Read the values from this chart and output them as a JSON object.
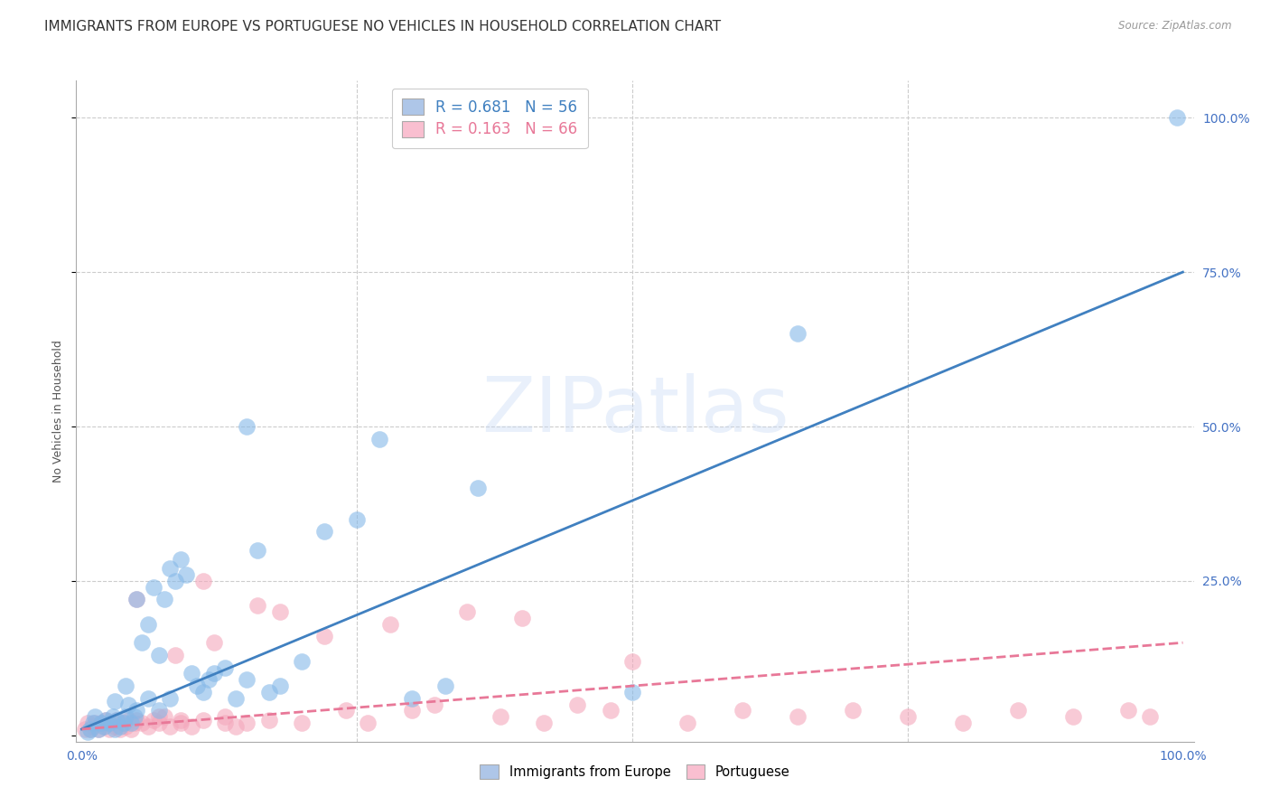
{
  "title": "IMMIGRANTS FROM EUROPE VS PORTUGUESE NO VEHICLES IN HOUSEHOLD CORRELATION CHART",
  "source": "Source: ZipAtlas.com",
  "ylabel": "No Vehicles in Household",
  "legend_line1": "R = 0.681   N = 56",
  "legend_line2": "R = 0.163   N = 66",
  "legend_color1": "#aec6e8",
  "legend_color2": "#f9bfd0",
  "watermark": "ZIPatlas",
  "blue_color": "#85b8e8",
  "pink_color": "#f4a8bc",
  "blue_line_color": "#4080c0",
  "pink_line_color": "#e87898",
  "background_color": "#ffffff",
  "grid_color": "#cccccc",
  "blue_points_x": [
    0.005,
    0.008,
    0.01,
    0.012,
    0.015,
    0.018,
    0.02,
    0.022,
    0.025,
    0.028,
    0.03,
    0.032,
    0.035,
    0.038,
    0.04,
    0.042,
    0.045,
    0.048,
    0.05,
    0.055,
    0.06,
    0.065,
    0.07,
    0.075,
    0.08,
    0.085,
    0.09,
    0.095,
    0.1,
    0.105,
    0.11,
    0.115,
    0.12,
    0.13,
    0.14,
    0.15,
    0.16,
    0.17,
    0.18,
    0.2,
    0.22,
    0.25,
    0.27,
    0.3,
    0.33,
    0.36,
    0.65,
    0.995,
    0.03,
    0.04,
    0.05,
    0.06,
    0.07,
    0.08,
    0.5,
    0.15
  ],
  "blue_points_y": [
    0.005,
    0.01,
    0.02,
    0.03,
    0.01,
    0.02,
    0.015,
    0.025,
    0.02,
    0.03,
    0.01,
    0.025,
    0.015,
    0.02,
    0.03,
    0.05,
    0.02,
    0.03,
    0.22,
    0.15,
    0.18,
    0.24,
    0.13,
    0.22,
    0.27,
    0.25,
    0.285,
    0.26,
    0.1,
    0.08,
    0.07,
    0.09,
    0.1,
    0.11,
    0.06,
    0.09,
    0.3,
    0.07,
    0.08,
    0.12,
    0.33,
    0.35,
    0.48,
    0.06,
    0.08,
    0.4,
    0.65,
    1.0,
    0.055,
    0.08,
    0.04,
    0.06,
    0.04,
    0.06,
    0.07,
    0.5
  ],
  "pink_points_x": [
    0.003,
    0.005,
    0.008,
    0.01,
    0.012,
    0.015,
    0.018,
    0.02,
    0.022,
    0.025,
    0.028,
    0.03,
    0.032,
    0.035,
    0.038,
    0.04,
    0.042,
    0.045,
    0.048,
    0.05,
    0.055,
    0.06,
    0.065,
    0.07,
    0.075,
    0.08,
    0.085,
    0.09,
    0.1,
    0.11,
    0.12,
    0.13,
    0.14,
    0.15,
    0.16,
    0.18,
    0.2,
    0.22,
    0.24,
    0.26,
    0.28,
    0.3,
    0.32,
    0.35,
    0.38,
    0.4,
    0.42,
    0.45,
    0.48,
    0.5,
    0.55,
    0.6,
    0.65,
    0.7,
    0.75,
    0.8,
    0.85,
    0.9,
    0.95,
    0.97,
    0.05,
    0.07,
    0.09,
    0.11,
    0.13,
    0.17
  ],
  "pink_points_y": [
    0.01,
    0.02,
    0.01,
    0.015,
    0.02,
    0.01,
    0.02,
    0.015,
    0.025,
    0.01,
    0.02,
    0.015,
    0.025,
    0.01,
    0.02,
    0.015,
    0.025,
    0.01,
    0.02,
    0.22,
    0.02,
    0.015,
    0.025,
    0.02,
    0.03,
    0.015,
    0.13,
    0.02,
    0.015,
    0.25,
    0.15,
    0.02,
    0.015,
    0.02,
    0.21,
    0.2,
    0.02,
    0.16,
    0.04,
    0.02,
    0.18,
    0.04,
    0.05,
    0.2,
    0.03,
    0.19,
    0.02,
    0.05,
    0.04,
    0.12,
    0.02,
    0.04,
    0.03,
    0.04,
    0.03,
    0.02,
    0.04,
    0.03,
    0.04,
    0.03,
    0.025,
    0.03,
    0.025,
    0.025,
    0.03,
    0.025
  ],
  "blue_trend_x": [
    0.0,
    1.0
  ],
  "blue_trend_y": [
    0.01,
    0.75
  ],
  "pink_trend_x": [
    0.0,
    1.0
  ],
  "pink_trend_y": [
    0.01,
    0.15
  ],
  "xlim": [
    -0.005,
    1.01
  ],
  "ylim": [
    -0.01,
    1.06
  ],
  "title_fontsize": 11,
  "axis_label_fontsize": 9,
  "tick_fontsize": 10,
  "legend_fontsize": 12
}
